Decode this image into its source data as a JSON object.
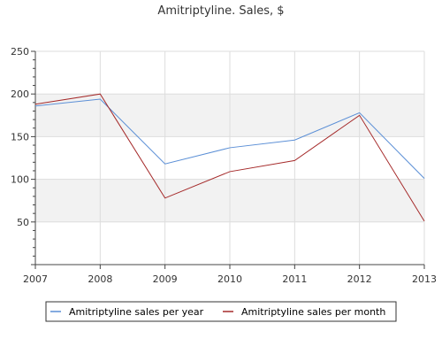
{
  "chart_data": {
    "type": "line",
    "title": "Amitriptyline. Sales, $",
    "xlabel": "",
    "ylabel": "",
    "x": [
      "2007",
      "2008",
      "2009",
      "2010",
      "2011",
      "2012",
      "2013"
    ],
    "ylim": [
      0,
      250
    ],
    "yticks": [
      "50",
      "100",
      "150",
      "200",
      "250"
    ],
    "grid": true,
    "legend_position": "bottom",
    "series": [
      {
        "name": "Amitriptyline sales per year",
        "color": "#5b8fd6",
        "values": [
          186,
          194,
          118,
          137,
          146,
          178,
          101
        ]
      },
      {
        "name": "Amitriptyline sales per month",
        "color": "#a52a2a",
        "values": [
          188,
          200,
          78,
          109,
          122,
          175,
          51
        ]
      }
    ],
    "band_color": "#f2f2f2",
    "grid_color": "#dddddd"
  }
}
